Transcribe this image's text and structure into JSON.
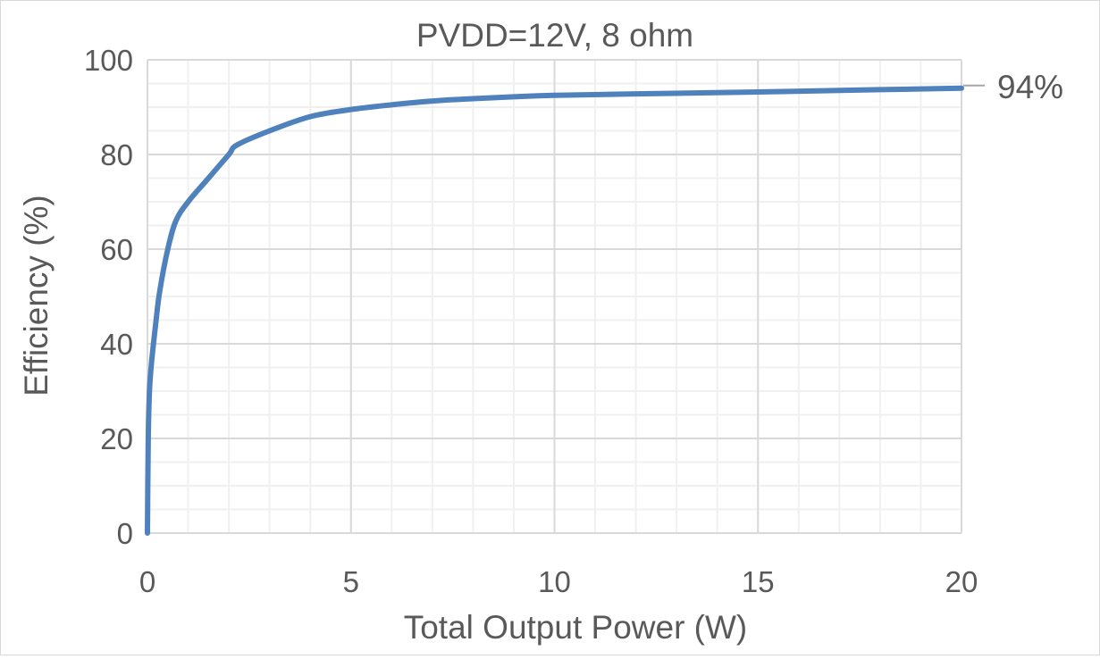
{
  "chart_data": {
    "type": "line",
    "title": "PVDD=12V, 8 ohm",
    "xlabel": "Total Output Power (W)",
    "ylabel": "Efficiency (%)",
    "xlim": [
      0,
      20
    ],
    "ylim": [
      0,
      100
    ],
    "x_ticks": [
      0,
      5,
      10,
      15,
      20
    ],
    "y_ticks": [
      0,
      20,
      40,
      60,
      80,
      100
    ],
    "x_minor_step": 1,
    "y_minor_step": 5,
    "grid": true,
    "legend": "none",
    "series": [
      {
        "color": "#4f81bd",
        "x": [
          0,
          0.02,
          0.05,
          0.1,
          0.2,
          0.3,
          0.5,
          0.7,
          1.0,
          1.5,
          2.0,
          2.2,
          3.0,
          4.0,
          5.0,
          6.0,
          7.0,
          8.0,
          9.0,
          10.0,
          12.0,
          15.0,
          18.0,
          20.0
        ],
        "y": [
          0,
          20,
          30,
          36,
          44,
          51,
          60,
          66,
          70,
          75,
          80,
          82,
          85,
          88,
          89.5,
          90.5,
          91.3,
          91.8,
          92.2,
          92.5,
          92.8,
          93.2,
          93.7,
          94
        ]
      }
    ],
    "annotations": [
      {
        "text": "94%",
        "x": 20,
        "y": 94
      }
    ]
  }
}
